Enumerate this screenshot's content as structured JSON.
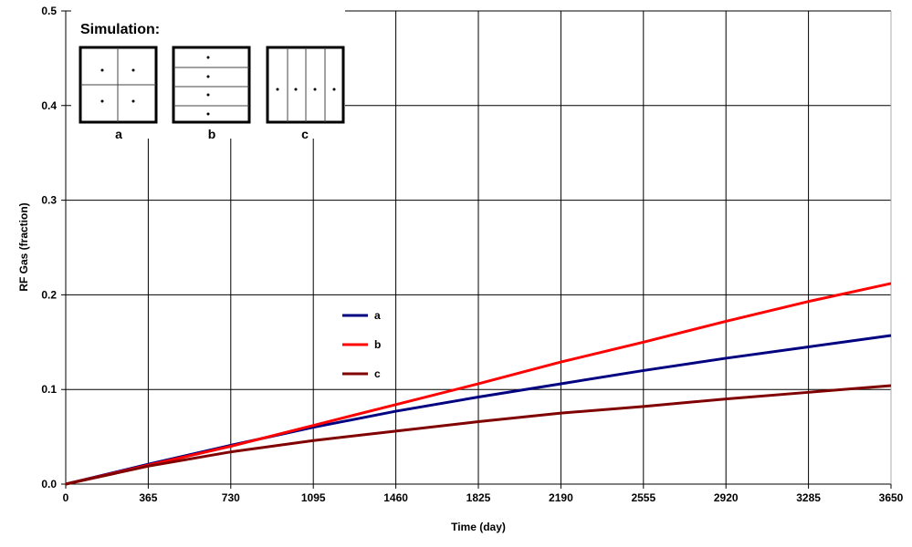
{
  "chart_data": {
    "type": "line",
    "title": "",
    "xlabel": "Time (day)",
    "ylabel": "RF Gas (fraction)",
    "xlim": [
      0,
      3650
    ],
    "ylim": [
      0,
      0.5
    ],
    "grid": true,
    "x_ticks": [
      "0",
      "365",
      "730",
      "1095",
      "1460",
      "1825",
      "2190",
      "2555",
      "2920",
      "3285",
      "3650"
    ],
    "y_ticks": [
      "0.0",
      "0.1",
      "0.2",
      "0.3",
      "0.4",
      "0.5"
    ],
    "x": [
      0,
      365,
      730,
      1095,
      1460,
      1825,
      2190,
      2555,
      2920,
      3285,
      3650
    ],
    "legend_position": "center",
    "series": [
      {
        "name": "a",
        "color": "#000080",
        "values": [
          0,
          0.021,
          0.041,
          0.06,
          0.077,
          0.092,
          0.106,
          0.12,
          0.133,
          0.145,
          0.157
        ]
      },
      {
        "name": "b",
        "color": "#ff0000",
        "values": [
          0,
          0.02,
          0.04,
          0.062,
          0.084,
          0.106,
          0.129,
          0.15,
          0.172,
          0.193,
          0.212
        ]
      },
      {
        "name": "c",
        "color": "#800000",
        "values": [
          0,
          0.019,
          0.034,
          0.046,
          0.056,
          0.066,
          0.075,
          0.082,
          0.09,
          0.097,
          0.104
        ]
      }
    ],
    "inset": {
      "title": "Simulation:",
      "labels": [
        "a",
        "b",
        "c"
      ]
    }
  }
}
